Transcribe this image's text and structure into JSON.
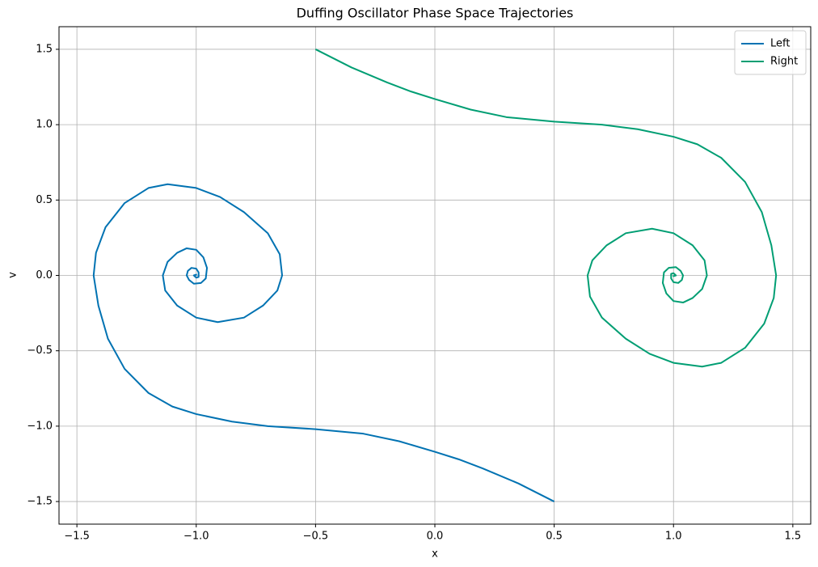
{
  "chart_data": {
    "type": "line",
    "title": "Duffing Oscillator Phase Space Trajectories",
    "x_label": "x",
    "y_label": "v",
    "xlim": [
      -1.575,
      1.575
    ],
    "ylim": [
      -1.65,
      1.65
    ],
    "xticks": [
      {
        "value": -1.5,
        "label": "−1.5"
      },
      {
        "value": -1.0,
        "label": "−1.0"
      },
      {
        "value": -0.5,
        "label": "−0.5"
      },
      {
        "value": 0,
        "label": "0.0"
      },
      0.5,
      {
        "value": 1.0,
        "label": "1.0"
      },
      1.5
    ],
    "yticks": [
      {
        "value": -1.5,
        "label": "−1.5"
      },
      {
        "value": -1.0,
        "label": "−1.0"
      },
      {
        "value": -0.5,
        "label": "−0.5"
      },
      {
        "value": 0,
        "label": "0.0"
      },
      0.5,
      {
        "value": 1.0,
        "label": "1.0"
      },
      1.5
    ],
    "grid": true,
    "legend": "upper right",
    "series": [
      {
        "name": "Left",
        "color": "#0072b2",
        "x": [
          0.5,
          0.35,
          0.2,
          0.1,
          0,
          -0.15,
          -0.3,
          -0.5,
          -0.7,
          -0.85,
          -1.0,
          -1.1,
          -1.2,
          -1.3,
          -1.37,
          -1.41,
          -1.43,
          -1.42,
          -1.38,
          -1.3,
          -1.2,
          -1.12,
          -1.0,
          -0.9,
          -0.8,
          -0.7,
          -0.65,
          -0.64,
          -0.66,
          -0.72,
          -0.8,
          -0.91,
          -1.0,
          -1.08,
          -1.13,
          -1.14,
          -1.12,
          -1.08,
          -1.04,
          -1.0,
          -0.97,
          -0.955,
          -0.96,
          -0.98,
          -1.01,
          -1.03,
          -1.04,
          -1.035,
          -1.02,
          -1.0,
          -0.99,
          -0.99,
          -1.0,
          -1.01,
          -1.0,
          -1.0
        ],
        "values": [
          -1.5,
          -1.38,
          -1.28,
          -1.22,
          -1.17,
          -1.1,
          -1.05,
          -1.02,
          -1.0,
          -0.97,
          -0.92,
          -0.87,
          -0.78,
          -0.62,
          -0.42,
          -0.2,
          0,
          0.15,
          0.32,
          0.48,
          0.58,
          0.605,
          0.58,
          0.52,
          0.42,
          0.28,
          0.14,
          0,
          -0.1,
          -0.2,
          -0.28,
          -0.31,
          -0.28,
          -0.2,
          -0.1,
          0,
          0.09,
          0.15,
          0.18,
          0.17,
          0.12,
          0.05,
          -0.02,
          -0.05,
          -0.055,
          -0.03,
          0,
          0.03,
          0.05,
          0.045,
          0.02,
          -0.01,
          -0.015,
          0,
          0.005,
          0
        ]
      },
      {
        "name": "Right",
        "color": "#009e73",
        "x": [
          -0.5,
          -0.35,
          -0.2,
          -0.1,
          0,
          0.15,
          0.3,
          0.5,
          0.7,
          0.85,
          1.0,
          1.1,
          1.2,
          1.3,
          1.37,
          1.41,
          1.43,
          1.42,
          1.38,
          1.3,
          1.2,
          1.12,
          1.0,
          0.9,
          0.8,
          0.7,
          0.65,
          0.64,
          0.66,
          0.72,
          0.8,
          0.91,
          1.0,
          1.08,
          1.13,
          1.14,
          1.12,
          1.08,
          1.04,
          1.0,
          0.97,
          0.955,
          0.96,
          0.98,
          1.01,
          1.03,
          1.04,
          1.035,
          1.02,
          1.0,
          0.99,
          0.99,
          1.0,
          1.01,
          1.0,
          1.0
        ],
        "values": [
          1.5,
          1.38,
          1.28,
          1.22,
          1.17,
          1.1,
          1.05,
          1.02,
          1.0,
          0.97,
          0.92,
          0.87,
          0.78,
          0.62,
          0.42,
          0.2,
          0,
          -0.15,
          -0.32,
          -0.48,
          -0.58,
          -0.605,
          -0.58,
          -0.52,
          -0.42,
          -0.28,
          -0.14,
          0,
          0.1,
          0.2,
          0.28,
          0.31,
          0.28,
          0.2,
          0.1,
          0,
          -0.09,
          -0.15,
          -0.18,
          -0.17,
          -0.12,
          -0.05,
          0.02,
          0.05,
          0.055,
          0.03,
          0,
          -0.03,
          -0.05,
          -0.045,
          -0.02,
          0.01,
          0.015,
          0,
          -0.005,
          0
        ]
      }
    ]
  }
}
